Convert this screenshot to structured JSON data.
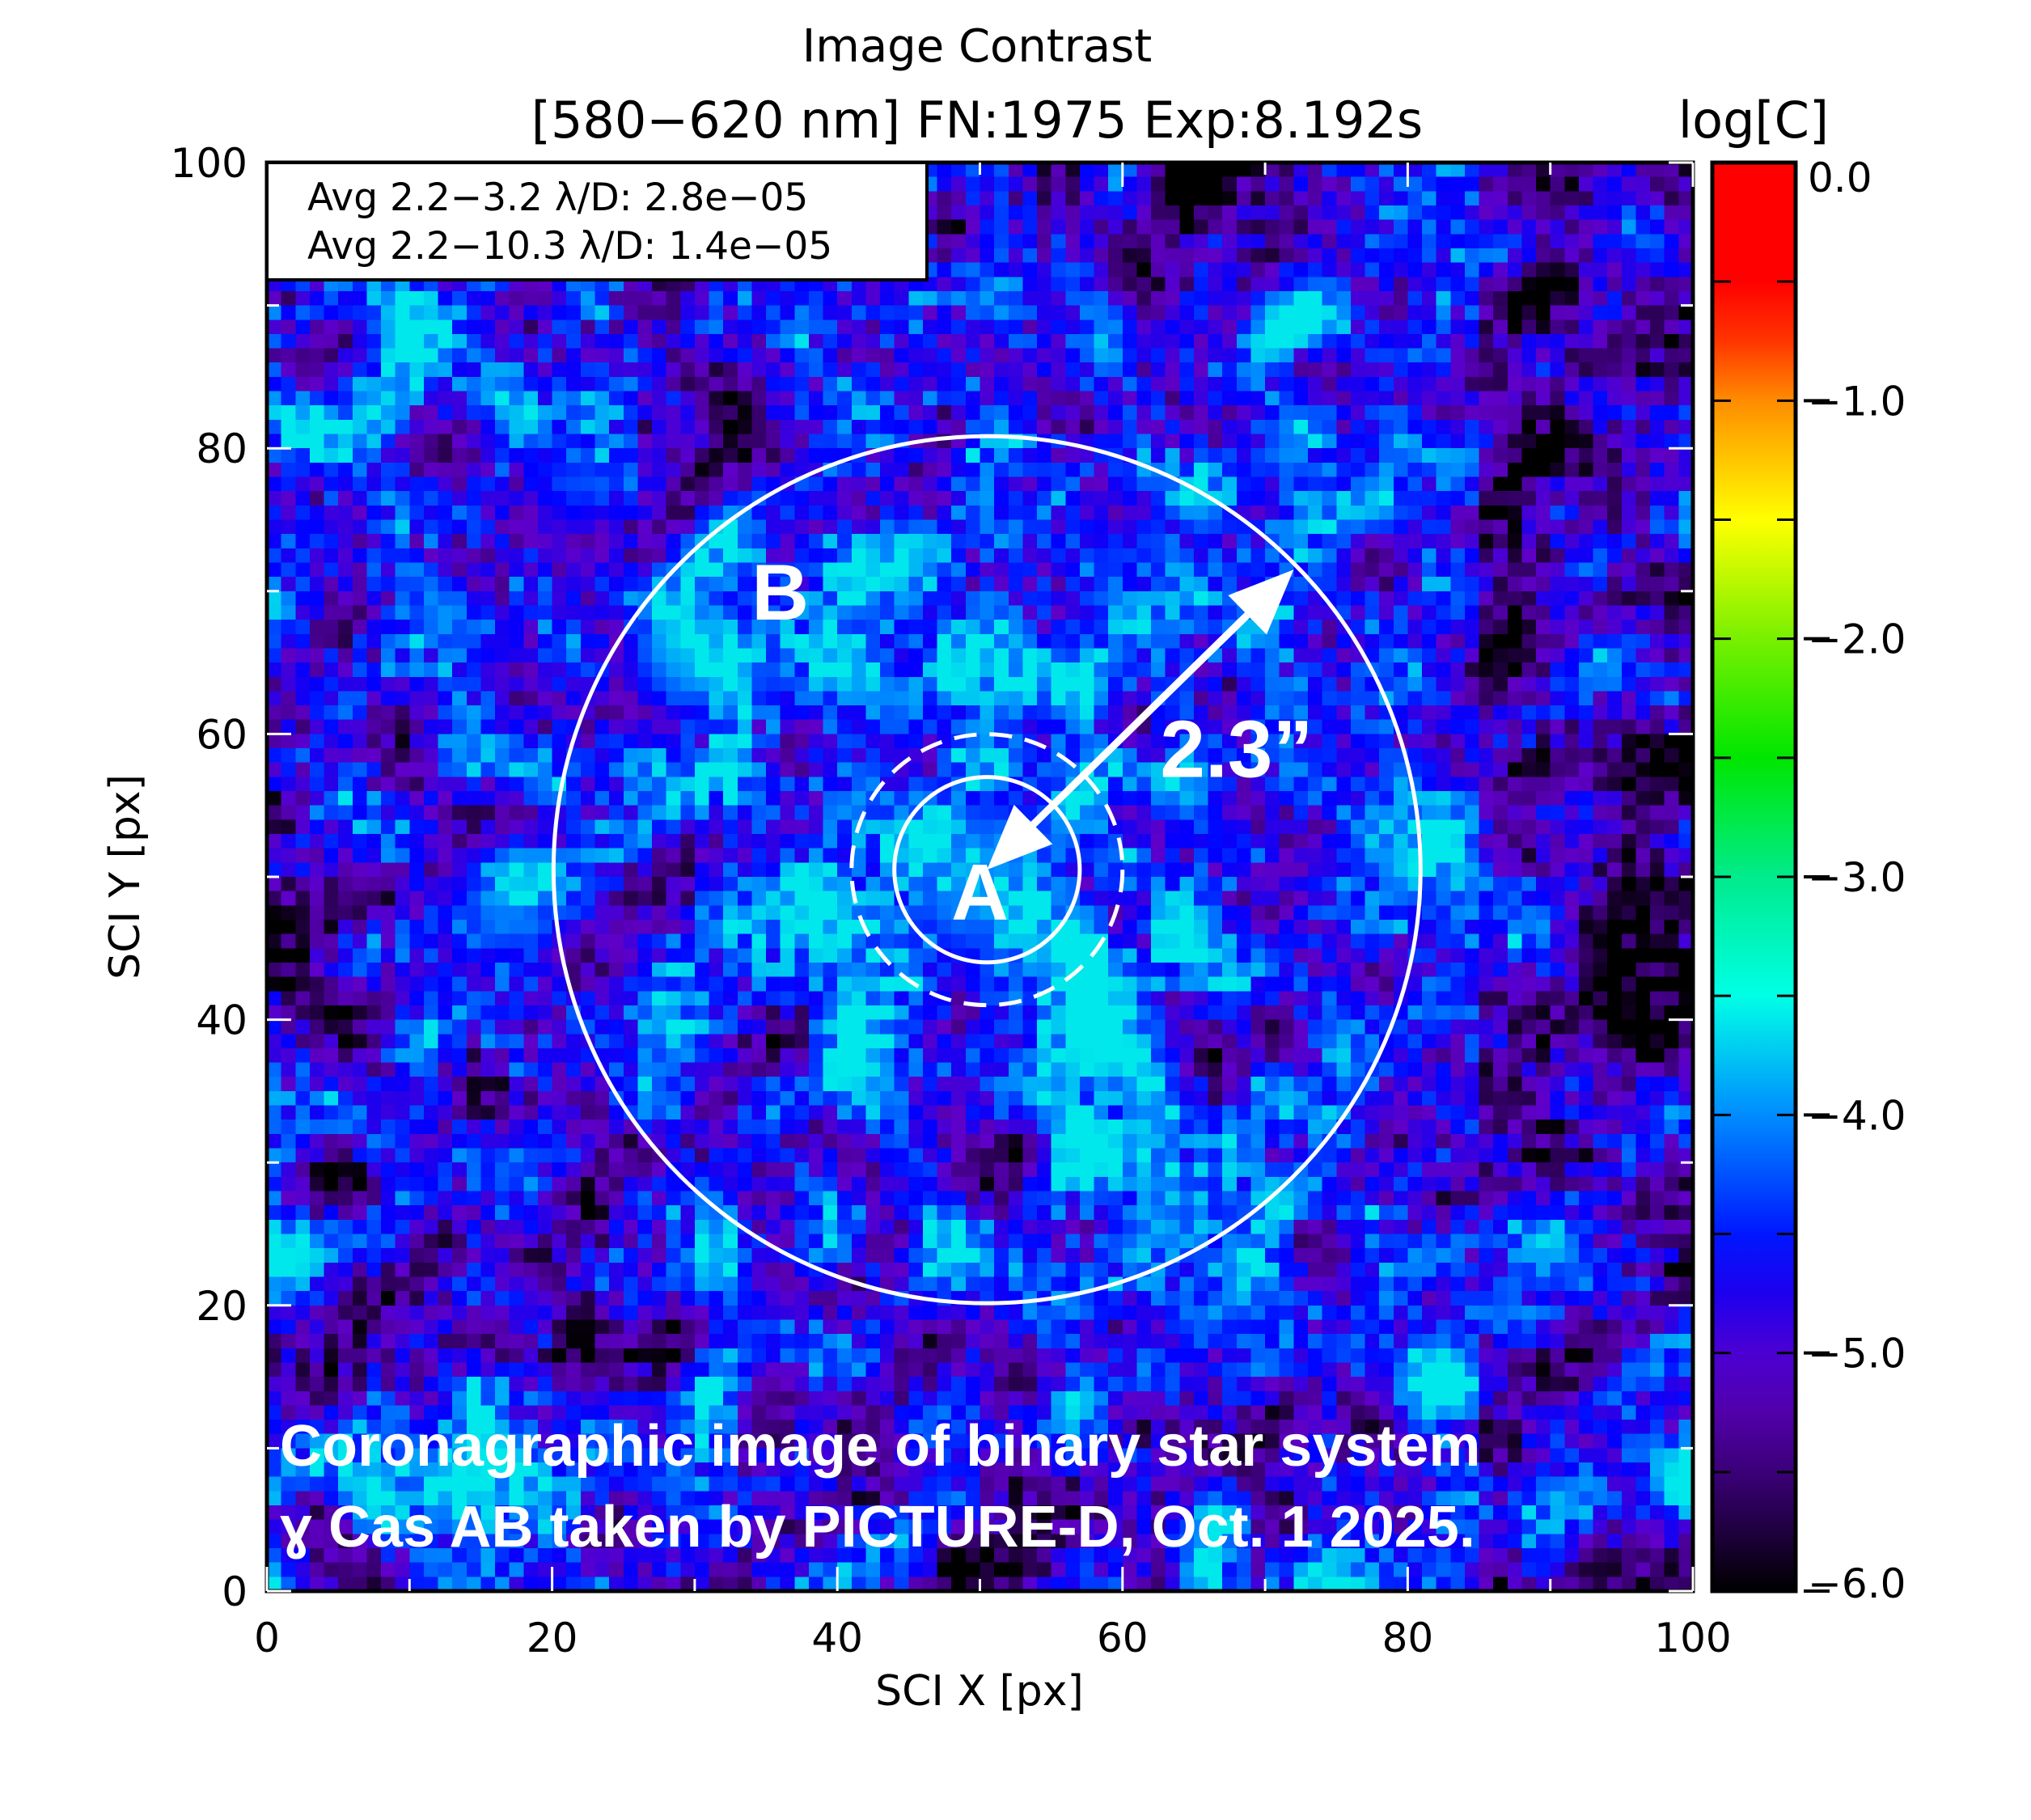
{
  "chart_data": {
    "type": "heatmap",
    "title": "Image Contrast",
    "subtitle": "[580−620 nm] FN:1975 Exp:8.192s",
    "xlabel": "SCI X [px]",
    "ylabel": "SCI Y [px]",
    "xlim": [
      0,
      100
    ],
    "ylim": [
      0,
      100
    ],
    "xticks": [
      "0",
      "20",
      "40",
      "60",
      "80",
      "100"
    ],
    "yticks": [
      "0",
      "20",
      "40",
      "60",
      "80",
      "100"
    ],
    "grid": false,
    "colormap": "rainbow (black-purple-blue-cyan-green-yellow-red)",
    "colorbar": {
      "label": "log[C]",
      "range": [
        -6,
        0
      ],
      "ticks": [
        "0.0",
        "−1.0",
        "−2.0",
        "−3.0",
        "−4.0",
        "−5.0",
        "−6.0"
      ],
      "tick_values": [
        0,
        -1,
        -2,
        -3,
        -4,
        -5,
        -6
      ]
    },
    "legend": {
      "placement": "top-left",
      "lines": [
        "Avg 2.2−3.2 λ/D: 2.8e−05",
        "Avg 2.2−10.3 λ/D: 1.4e−05"
      ]
    },
    "annotations": {
      "star_a": {
        "label": "A",
        "x": 50,
        "y": 47
      },
      "star_b": {
        "label": "B",
        "x": 36,
        "y": 68
      },
      "separation": {
        "label": "2.3”",
        "x": 68,
        "y": 57
      },
      "arrow": {
        "from": [
          50.5,
          50.5
        ],
        "to": [
          72,
          71.5
        ]
      },
      "circles": [
        {
          "center": [
            50.5,
            50.5
          ],
          "radius": 6.5,
          "style": "solid"
        },
        {
          "center": [
            50.5,
            50.5
          ],
          "radius": 9.5,
          "style": "dashed"
        },
        {
          "center": [
            50.5,
            50.5
          ],
          "radius": 30.4,
          "style": "solid"
        }
      ],
      "bright_sources": [
        {
          "x": 50,
          "y": 50,
          "logC": -3.9
        },
        {
          "x": 30,
          "y": 66,
          "logC": -3.7
        },
        {
          "x": 17,
          "y": 48,
          "logC": -4.0
        },
        {
          "x": 22,
          "y": 78,
          "logC": -4.3
        }
      ]
    },
    "caption": [
      "Coronagraphic image of binary star system",
      "ɣ Cas AB taken by PICTURE-D, Oct. 1 2025."
    ]
  }
}
